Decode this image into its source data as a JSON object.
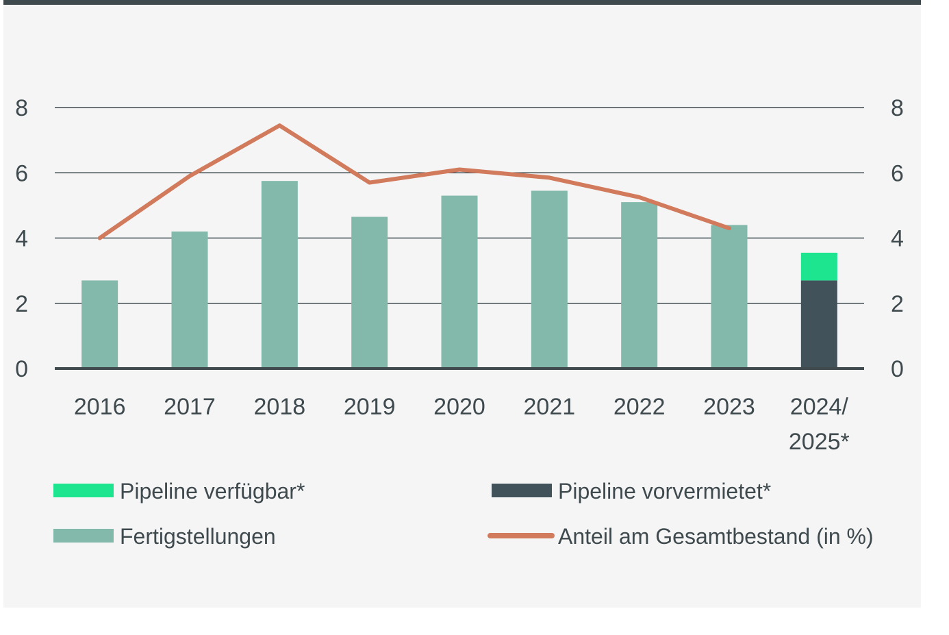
{
  "chart_data": {
    "type": "bar",
    "categories": [
      "2016",
      "2017",
      "2018",
      "2019",
      "2020",
      "2021",
      "2022",
      "2023",
      "2024/\n2025*"
    ],
    "series": [
      {
        "name": "Fertigstellungen",
        "kind": "bar",
        "color": "#82b9ab",
        "values": [
          2.7,
          4.2,
          5.75,
          4.65,
          5.3,
          5.45,
          5.1,
          4.4,
          null
        ]
      },
      {
        "name": "Pipeline vorvermietet*",
        "kind": "bar",
        "color": "#42525a",
        "values": [
          null,
          null,
          null,
          null,
          null,
          null,
          null,
          null,
          2.7
        ]
      },
      {
        "name": "Pipeline verfügbar*",
        "kind": "bar-stacked",
        "color": "#1de48f",
        "values": [
          null,
          null,
          null,
          null,
          null,
          null,
          null,
          null,
          0.85
        ]
      },
      {
        "name": "Anteil am Gesamtbestand (in %)",
        "kind": "line",
        "axis": "right",
        "color": "#d17a5c",
        "values": [
          4.0,
          5.9,
          7.45,
          5.7,
          6.1,
          5.85,
          5.25,
          4.3,
          null
        ]
      }
    ],
    "ylim": [
      0,
      8
    ],
    "yticks": [
      "0",
      "2",
      "4",
      "6",
      "8"
    ],
    "y2lim": [
      0,
      8
    ],
    "y2ticks": [
      "0",
      "2",
      "4",
      "6",
      "8"
    ],
    "grid": true,
    "legend": {
      "placement": "bottom",
      "items": [
        {
          "label": "Pipeline verfügbar*",
          "color": "#1de48f",
          "shape": "box"
        },
        {
          "label": "Pipeline vorvermietet*",
          "color": "#42525a",
          "shape": "box"
        },
        {
          "label": "Fertigstellungen",
          "color": "#82b9ab",
          "shape": "box"
        },
        {
          "label": "Anteil am Gesamtbestand (in %)",
          "color": "#d17a5c",
          "shape": "line"
        }
      ]
    }
  }
}
